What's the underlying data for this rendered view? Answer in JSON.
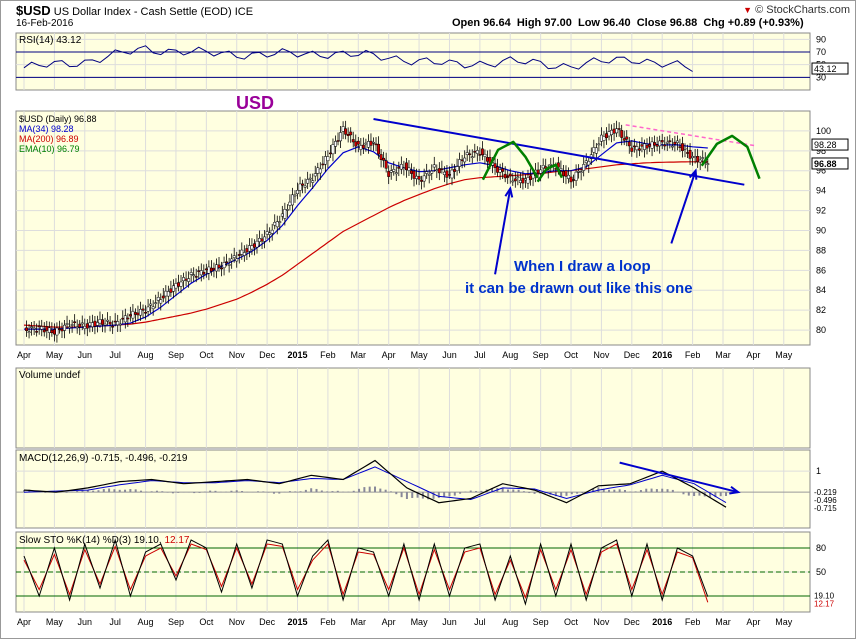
{
  "header": {
    "symbol": "$USD",
    "name": "US Dollar Index - Cash Settle (EOD)",
    "exchange": "ICE",
    "date": "16-Feb-2016",
    "open": "Open 96.64",
    "high": "High 97.00",
    "low": "Low 96.40",
    "close": "Close 96.88",
    "change": "Chg +0.89 (+0.93%)",
    "brand": "© StockCharts.com",
    "brand_arrow": "▼"
  },
  "chart_data": [
    {
      "type": "line",
      "panel": "rsi",
      "legend": "RSI(14) 43.12",
      "y_ticks": [
        "90",
        "70",
        "50",
        "30"
      ],
      "ylim": [
        10,
        100
      ],
      "last_value_label": "43.12",
      "overbought": 70,
      "oversold": 30,
      "x": [
        "Apr 2014",
        "Jun 2014",
        "Aug 2014",
        "Oct 2014",
        "Dec 2014",
        "Feb 2015",
        "Apr 2015",
        "Jun 2015",
        "Aug 2015",
        "Oct 2015",
        "Dec 2015",
        "Feb 2016"
      ],
      "series": [
        {
          "name": "RSI(14)",
          "values": [
            45,
            55,
            75,
            68,
            66,
            68,
            62,
            50,
            55,
            48,
            60,
            43.12
          ]
        }
      ],
      "colors": {
        "line": "#000080",
        "fill": "#000080"
      }
    },
    {
      "type": "candlestick",
      "panel": "price",
      "title": "USD",
      "legend": [
        {
          "label": "$USD (Daily) 96.88",
          "color": "#000000"
        },
        {
          "label": "MA(34) 98.28",
          "color": "#0000cc"
        },
        {
          "label": "MA(200) 96.89",
          "color": "#cc0000"
        },
        {
          "label": "EMA(10) 96.79",
          "color": "#008000"
        }
      ],
      "y_ticks": [
        "100",
        "98",
        "96",
        "94",
        "92",
        "90",
        "88",
        "86",
        "84",
        "82",
        "80"
      ],
      "ylim": [
        78.5,
        102
      ],
      "right_labels": [
        "98.28",
        "96.88"
      ],
      "annotation": [
        "When I draw a loop",
        "it can be drawn out  like this one"
      ],
      "x_month_labels": [
        "Apr",
        "May",
        "Jun",
        "Jul",
        "Aug",
        "Sep",
        "Oct",
        "Nov",
        "Dec",
        "2015",
        "Feb",
        "Mar",
        "Apr",
        "May",
        "Jun",
        "Jul",
        "Aug",
        "Sep",
        "Oct",
        "Nov",
        "Dec",
        "2016",
        "Feb",
        "Mar",
        "Apr",
        "May"
      ],
      "x_month_pos": [
        0,
        1,
        2,
        3,
        4,
        5,
        6,
        7,
        8,
        9,
        10,
        11,
        12,
        13,
        14,
        15,
        16,
        17,
        18,
        19,
        20,
        21,
        22,
        23,
        24,
        25
      ],
      "x": [
        0,
        0.5,
        1,
        1.5,
        2,
        2.5,
        3,
        3.5,
        4,
        4.5,
        5,
        5.5,
        6,
        6.5,
        7,
        7.5,
        8,
        8.5,
        9,
        9.5,
        10,
        10.5,
        11,
        11.5,
        12,
        12.5,
        13,
        13.5,
        14,
        14.5,
        15,
        15.5,
        16,
        16.5,
        17,
        17.5,
        18,
        18.5,
        19,
        19.5,
        20,
        20.5,
        21,
        21.5,
        22,
        22.5
      ],
      "close": [
        80.0,
        80.2,
        79.8,
        80.6,
        80.4,
        80.8,
        80.6,
        81.5,
        82.0,
        83.2,
        84.5,
        85.5,
        86.0,
        86.4,
        87.4,
        88.4,
        89.6,
        91.5,
        94.2,
        95.3,
        97.5,
        100.2,
        98.4,
        98.9,
        95.7,
        96.5,
        95.0,
        96.3,
        95.5,
        97.5,
        97.9,
        96.3,
        95.2,
        95.0,
        96.2,
        96.5,
        95.0,
        96.8,
        99.3,
        100.2,
        98.2,
        98.5,
        98.8,
        98.7,
        97.3,
        96.9
      ],
      "ma34": [
        80.1,
        80.1,
        80.1,
        80.2,
        80.3,
        80.4,
        80.5,
        80.7,
        81.3,
        82.3,
        83.5,
        84.7,
        85.6,
        86.4,
        87.1,
        87.9,
        89.0,
        90.5,
        92.5,
        94.3,
        96.2,
        97.8,
        98.4,
        97.9,
        96.8,
        96.3,
        95.9,
        96.0,
        96.3,
        96.6,
        96.8,
        96.5,
        96.0,
        95.7,
        95.8,
        96.0,
        96.0,
        96.4,
        97.6,
        98.8,
        99.0,
        98.7,
        98.6,
        98.6,
        98.4,
        98.28
      ],
      "ma200": [
        80.5,
        80.4,
        80.3,
        80.3,
        80.3,
        80.4,
        80.5,
        80.6,
        80.8,
        81.1,
        81.4,
        81.7,
        82.1,
        82.6,
        83.1,
        83.8,
        84.6,
        85.5,
        86.6,
        87.7,
        88.8,
        89.9,
        90.7,
        91.5,
        92.3,
        93.0,
        93.6,
        94.2,
        94.7,
        95.1,
        95.3,
        95.4,
        95.5,
        95.6,
        95.7,
        95.9,
        96.0,
        96.2,
        96.4,
        96.6,
        96.7,
        96.8,
        96.85,
        96.88,
        96.9,
        96.89
      ],
      "projection": {
        "points": [
          [
            22.3,
            96.5
          ],
          [
            22.8,
            98.7
          ],
          [
            23.3,
            99.5
          ],
          [
            23.8,
            98.4
          ],
          [
            24.2,
            95.2
          ]
        ],
        "color": "#008000"
      },
      "trendlines": [
        {
          "from": [
            11.5,
            101.2
          ],
          "to": [
            23.7,
            94.6
          ],
          "color": "#0000cc"
        },
        {
          "from": [
            19.8,
            100.6
          ],
          "to": [
            24.1,
            98.5
          ],
          "color": "#ff66cc",
          "dashed": true
        }
      ],
      "loops": [
        {
          "points": [
            [
              15.1,
              95.1
            ],
            [
              15.6,
              98.1
            ],
            [
              16.1,
              98.9
            ],
            [
              16.5,
              97.4
            ],
            [
              16.9,
              95.3
            ]
          ],
          "color": "#008000"
        },
        {
          "points": [
            [
              16.9,
              94.9
            ],
            [
              17.2,
              96.2
            ],
            [
              17.5,
              96.6
            ],
            [
              17.7,
              95.3
            ]
          ],
          "color": "#008000"
        }
      ],
      "arrows": [
        {
          "from": [
            15.5,
            85.6
          ],
          "to": [
            16.0,
            94.2
          ],
          "color": "#0000cc"
        },
        {
          "from": [
            21.3,
            88.7
          ],
          "to": [
            22.1,
            96.0
          ],
          "color": "#0000cc"
        }
      ]
    },
    {
      "type": "bar",
      "panel": "volume",
      "legend": "Volume undef",
      "values": []
    },
    {
      "type": "line",
      "panel": "macd",
      "legend": "MACD(12,26,9) -0.715, -0.496, -0.219",
      "y_ticks": [
        "1"
      ],
      "ylim": [
        -1.7,
        2.0
      ],
      "right_labels": [
        "-0.219",
        "-0.496",
        "-0.715"
      ],
      "x": [
        0,
        1,
        2,
        3,
        4,
        5,
        6,
        7,
        8,
        9,
        10,
        11,
        12,
        13,
        14,
        15,
        16,
        17,
        18,
        19,
        20,
        21,
        22
      ],
      "series": [
        {
          "name": "MACD",
          "values": [
            0.1,
            0.0,
            0.2,
            0.5,
            0.6,
            0.4,
            0.5,
            0.6,
            0.4,
            0.8,
            0.6,
            1.5,
            0.2,
            -0.5,
            -0.3,
            0.4,
            0.1,
            -0.5,
            0.3,
            0.4,
            1.0,
            0.2,
            -0.715
          ]
        },
        {
          "name": "Signal",
          "values": [
            0.0,
            0.05,
            0.1,
            0.35,
            0.55,
            0.45,
            0.45,
            0.55,
            0.45,
            0.65,
            0.6,
            1.2,
            0.5,
            -0.2,
            -0.35,
            0.2,
            0.15,
            -0.3,
            0.1,
            0.35,
            0.8,
            0.4,
            -0.496
          ]
        }
      ],
      "histogram": [
        0.1,
        -0.05,
        0.1,
        0.15,
        0.05,
        -0.05,
        0.05,
        0.05,
        -0.05,
        0.15,
        0.0,
        0.3,
        -0.3,
        -0.3,
        0.05,
        0.2,
        -0.05,
        -0.2,
        0.2,
        0.05,
        0.2,
        -0.2,
        -0.219
      ],
      "downtrend_arrow": {
        "from": [
          19.6,
          1.4
        ],
        "to": [
          23.5,
          0.0
        ],
        "color": "#0000cc"
      }
    },
    {
      "type": "line",
      "panel": "stochastics",
      "legend": "Slow STO %K(14) %D(3) 19.10, 12.17",
      "legend_k": "19.10,",
      "legend_d": "12.17",
      "y_ticks": [
        "80",
        "50"
      ],
      "ylim": [
        0,
        100
      ],
      "right_labels": [
        "19.10",
        "12.17"
      ],
      "x_month_labels": [
        "Apr",
        "May",
        "Jun",
        "Jul",
        "Aug",
        "Sep",
        "Oct",
        "Nov",
        "Dec",
        "2015",
        "Feb",
        "Mar",
        "Apr",
        "May",
        "Jun",
        "Jul",
        "Aug",
        "Sep",
        "Oct",
        "Nov",
        "Dec",
        "2016",
        "Feb",
        "Mar",
        "Apr",
        "May"
      ],
      "x": [
        0,
        0.5,
        1,
        1.5,
        2,
        2.5,
        3,
        3.5,
        4,
        4.5,
        5,
        5.5,
        6,
        6.5,
        7,
        7.5,
        8,
        8.5,
        9,
        9.5,
        10,
        10.5,
        11,
        11.5,
        12,
        12.5,
        13,
        13.5,
        14,
        14.5,
        15,
        15.5,
        16,
        16.5,
        17,
        17.5,
        18,
        18.5,
        19,
        19.5,
        20,
        20.5,
        21,
        21.5,
        22,
        22.5
      ],
      "series": [
        {
          "name": "%K",
          "values": [
            70,
            20,
            80,
            15,
            85,
            30,
            90,
            20,
            75,
            85,
            40,
            90,
            80,
            25,
            85,
            30,
            90,
            85,
            20,
            70,
            90,
            15,
            80,
            75,
            20,
            85,
            15,
            85,
            20,
            80,
            85,
            15,
            70,
            10,
            85,
            20,
            85,
            15,
            80,
            90,
            20,
            85,
            15,
            80,
            70,
            19.1
          ]
        },
        {
          "name": "%D",
          "values": [
            65,
            28,
            72,
            22,
            78,
            35,
            82,
            28,
            70,
            80,
            45,
            85,
            78,
            32,
            80,
            35,
            85,
            82,
            28,
            65,
            85,
            22,
            75,
            72,
            28,
            80,
            22,
            78,
            28,
            75,
            80,
            22,
            65,
            18,
            78,
            28,
            78,
            22,
            75,
            85,
            28,
            78,
            22,
            75,
            68,
            12.17
          ]
        }
      ]
    }
  ]
}
